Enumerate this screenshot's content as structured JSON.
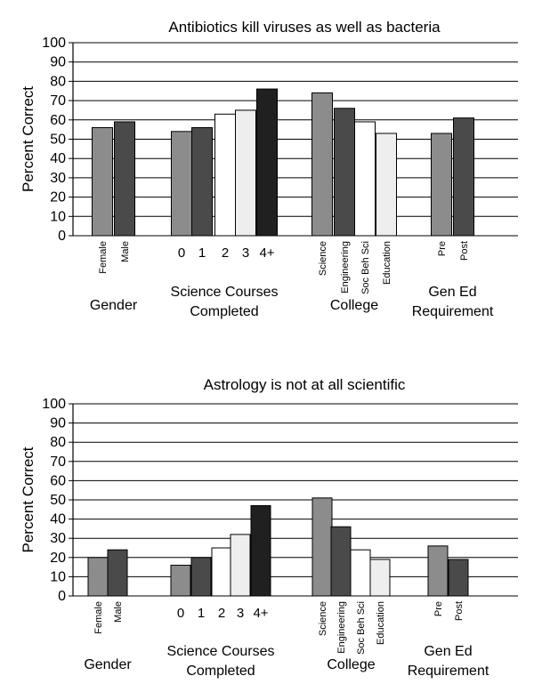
{
  "chart_data": [
    {
      "type": "bar",
      "title": "Antibiotics kill viruses as well as bacteria",
      "ylabel": "Percent Correct",
      "ylim": [
        0,
        100
      ],
      "yticks": [
        "0",
        "10",
        "20",
        "30",
        "40",
        "50",
        "60",
        "70",
        "80",
        "90",
        "100"
      ],
      "groups": [
        {
          "name": "Gender",
          "categories": [
            "Female",
            "Male"
          ],
          "values": [
            56,
            59
          ],
          "colors": [
            "#8c8c8c",
            "#4a4a4a"
          ]
        },
        {
          "name": "Science Courses Completed",
          "name_lines": [
            "Science Courses",
            "Completed"
          ],
          "categories": [
            "0",
            "1",
            "2",
            "3",
            "4+"
          ],
          "values": [
            54,
            56,
            63,
            65,
            76
          ],
          "colors": [
            "#8c8c8c",
            "#4a4a4a",
            "#ffffff",
            "#eeeeee",
            "#202020"
          ]
        },
        {
          "name": "College",
          "categories": [
            "Science",
            "Engineering",
            "Soc Beh Sci",
            "Education"
          ],
          "values": [
            74,
            66,
            59,
            53
          ],
          "colors": [
            "#8c8c8c",
            "#4a4a4a",
            "#ffffff",
            "#eeeeee"
          ]
        },
        {
          "name": "Gen Ed Requirement",
          "name_lines": [
            "Gen Ed",
            "Requirement"
          ],
          "categories": [
            "Pre",
            "Post"
          ],
          "values": [
            53,
            61
          ],
          "colors": [
            "#8c8c8c",
            "#4a4a4a"
          ]
        }
      ]
    },
    {
      "type": "bar",
      "title": "Astrology is not at all scientific",
      "ylabel": "Percent Correct",
      "ylim": [
        0,
        100
      ],
      "yticks": [
        "0",
        "10",
        "20",
        "30",
        "40",
        "50",
        "60",
        "70",
        "80",
        "90",
        "100"
      ],
      "groups": [
        {
          "name": "Gender",
          "categories": [
            "Female",
            "Male"
          ],
          "values": [
            20,
            24
          ],
          "colors": [
            "#8c8c8c",
            "#4a4a4a"
          ]
        },
        {
          "name": "Science Courses Completed",
          "name_lines": [
            "Science Courses",
            "Completed"
          ],
          "categories": [
            "0",
            "1",
            "2",
            "3",
            "4+"
          ],
          "values": [
            16,
            20,
            25,
            32,
            47
          ],
          "colors": [
            "#8c8c8c",
            "#4a4a4a",
            "#ffffff",
            "#eeeeee",
            "#202020"
          ]
        },
        {
          "name": "College",
          "categories": [
            "Science",
            "Engineering",
            "Soc Beh Sci",
            "Education"
          ],
          "values": [
            51,
            36,
            24,
            19
          ],
          "colors": [
            "#8c8c8c",
            "#4a4a4a",
            "#ffffff",
            "#eeeeee"
          ]
        },
        {
          "name": "Gen Ed Requirement",
          "name_lines": [
            "Gen Ed",
            "Requirement"
          ],
          "categories": [
            "Pre",
            "Post"
          ],
          "values": [
            26,
            19
          ],
          "colors": [
            "#8c8c8c",
            "#4a4a4a"
          ]
        }
      ]
    }
  ]
}
